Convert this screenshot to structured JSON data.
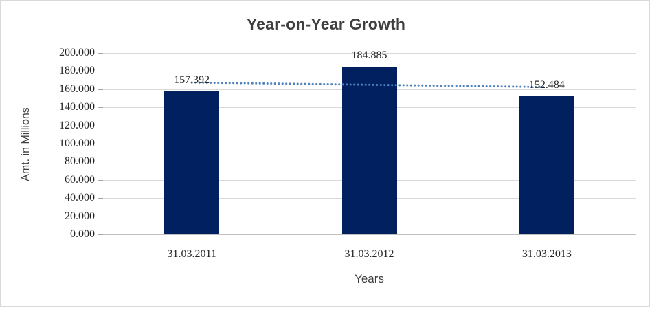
{
  "chart_data": {
    "type": "bar",
    "title": "Year-on-Year Growth",
    "xlabel": "Years",
    "ylabel": "Amt. in Millions",
    "categories": [
      "31.03.2011",
      "31.03.2012",
      "31.03.2013"
    ],
    "values": [
      157.392,
      184.885,
      152.484
    ],
    "value_labels": [
      "157.392",
      "184.885",
      "152.484"
    ],
    "ylim": [
      0,
      200
    ],
    "ytick_step": 20,
    "ytick_labels": [
      "200.000",
      "180.000",
      "160.000",
      "140.000",
      "120.000",
      "100.000",
      "80.000",
      "60.000",
      "40.000",
      "20.000",
      "0.000"
    ],
    "grid": true,
    "legend_position": "none",
    "bar_color": "#002060",
    "gridline_color": "#d9d9d9",
    "axis_line_color": "#bfbfbf",
    "trendline": {
      "type": "linear",
      "style": "dotted",
      "color": "#4f81bd"
    }
  },
  "frame": {
    "border_color": "#d9d9d9",
    "background": "#ffffff"
  }
}
